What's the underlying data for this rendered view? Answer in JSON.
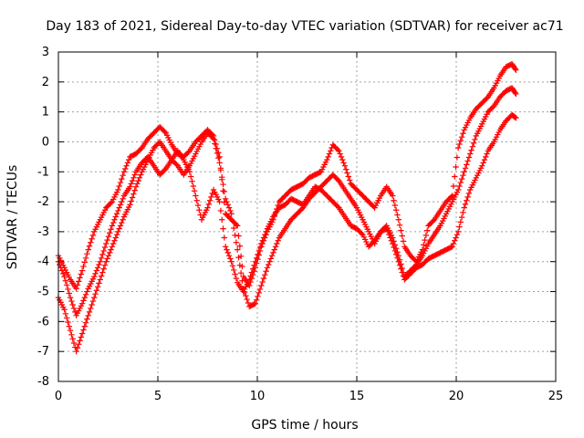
{
  "chart_data": {
    "type": "scatter",
    "title": "Day 183 of 2021, Sidereal Day-to-day VTEC variation (SDTVAR) for receiver ac71",
    "xlabel": "GPS time / hours",
    "ylabel": "SDTVAR / TECUs",
    "xlim": [
      0,
      25
    ],
    "ylim": [
      -8,
      3
    ],
    "xticks": [
      "0",
      "5",
      "10",
      "15",
      "20",
      "25"
    ],
    "yticks": [
      "-8",
      "-7",
      "-6",
      "-5",
      "-4",
      "-3",
      "-2",
      "-1",
      "0",
      "1",
      "2",
      "3"
    ],
    "grid": true,
    "marker": "plus",
    "color": "#ff0000",
    "series": [
      {
        "x": [
          0.0,
          0.3,
          0.6,
          0.9,
          1.2,
          1.5,
          1.8,
          2.1,
          2.4,
          2.7,
          3.0,
          3.3,
          3.6,
          3.9,
          4.2,
          4.5,
          4.8,
          5.1,
          5.4,
          5.7,
          6.0,
          6.3,
          6.6,
          6.9,
          7.2,
          7.5,
          7.8,
          8.1,
          8.4,
          8.7,
          9.0,
          9.3,
          9.6,
          9.9,
          10.2,
          10.5,
          10.8,
          11.1,
          11.4,
          11.7,
          12.0,
          12.3,
          12.6,
          12.9,
          13.2,
          13.5,
          13.8,
          14.1,
          14.4,
          14.7,
          15.0,
          15.3,
          15.6,
          15.9,
          16.2,
          16.5,
          16.8,
          17.1,
          17.4,
          17.7,
          18.0,
          18.3,
          18.6,
          18.9,
          19.2,
          19.5,
          19.8,
          20.1,
          20.4,
          20.7,
          21.0,
          21.3,
          21.6,
          21.9,
          22.2,
          22.5,
          22.8,
          23.0
        ],
        "y": [
          -3.8,
          -4.2,
          -4.6,
          -4.9,
          -4.3,
          -3.6,
          -3.0,
          -2.6,
          -2.2,
          -2.0,
          -1.6,
          -1.0,
          -0.5,
          -0.4,
          -0.2,
          0.1,
          0.3,
          0.5,
          0.3,
          -0.1,
          -0.4,
          -0.5,
          -0.3,
          0.0,
          0.2,
          0.4,
          0.2,
          -0.5,
          -2.4,
          -2.6,
          -2.8,
          -4.5,
          -4.8,
          -4.2,
          -3.5,
          -3.0,
          -2.6,
          -2.0,
          -1.8,
          -1.6,
          -1.5,
          -1.4,
          -1.2,
          -1.1,
          -1.0,
          -0.6,
          -0.1,
          -0.3,
          -0.8,
          -1.4,
          -1.6,
          -1.8,
          -2.0,
          -2.2,
          -1.8,
          -1.5,
          -1.8,
          -2.6,
          -3.5,
          -3.8,
          -4.0,
          -3.6,
          -2.8,
          -2.6,
          -2.3,
          -2.0,
          -1.8,
          -0.2,
          0.4,
          0.8,
          1.1,
          1.3,
          1.5,
          1.8,
          2.2,
          2.5,
          2.6,
          2.4
        ]
      },
      {
        "x": [
          0.0,
          0.3,
          0.6,
          0.9,
          1.2,
          1.5,
          1.8,
          2.1,
          2.4,
          2.7,
          3.0,
          3.3,
          3.6,
          3.9,
          4.2,
          4.5,
          4.8,
          5.1,
          5.4,
          5.7,
          6.0,
          6.3,
          6.6,
          6.9,
          7.2,
          7.5,
          7.8,
          8.1,
          8.4,
          8.7,
          9.0,
          9.3,
          9.6,
          9.9,
          10.2,
          10.5,
          10.8,
          11.1,
          11.4,
          11.7,
          12.0,
          12.3,
          12.6,
          12.9,
          13.2,
          13.5,
          13.8,
          14.1,
          14.4,
          14.7,
          15.0,
          15.3,
          15.6,
          15.9,
          16.2,
          16.5,
          16.8,
          17.1,
          17.4,
          17.7,
          18.0,
          18.3,
          18.6,
          18.9,
          19.2,
          19.5,
          19.8,
          20.1,
          20.4,
          20.7,
          21.0,
          21.3,
          21.6,
          21.9,
          22.2,
          22.5,
          22.8,
          23.0
        ],
        "y": [
          -5.2,
          -5.6,
          -6.3,
          -7.0,
          -6.4,
          -5.8,
          -5.2,
          -4.6,
          -4.0,
          -3.5,
          -3.0,
          -2.5,
          -2.1,
          -1.5,
          -1.0,
          -0.6,
          -0.2,
          0.0,
          -0.3,
          -0.6,
          -0.8,
          -1.1,
          -0.8,
          -0.4,
          0.0,
          0.3,
          0.1,
          -0.7,
          -1.9,
          -2.4,
          -3.6,
          -4.9,
          -5.5,
          -5.4,
          -4.8,
          -4.2,
          -3.7,
          -3.2,
          -2.9,
          -2.6,
          -2.4,
          -2.2,
          -1.9,
          -1.7,
          -1.5,
          -1.3,
          -1.1,
          -1.3,
          -1.6,
          -1.9,
          -2.2,
          -2.6,
          -3.0,
          -3.4,
          -3.0,
          -2.8,
          -3.2,
          -3.8,
          -4.5,
          -4.3,
          -4.1,
          -3.8,
          -3.4,
          -3.1,
          -2.8,
          -2.4,
          -2.0,
          -1.6,
          -1.0,
          -0.4,
          0.2,
          0.6,
          1.0,
          1.2,
          1.5,
          1.7,
          1.8,
          1.6
        ]
      },
      {
        "x": [
          0.0,
          0.3,
          0.6,
          0.9,
          1.2,
          1.5,
          1.8,
          2.1,
          2.4,
          2.7,
          3.0,
          3.3,
          3.6,
          3.9,
          4.2,
          4.5,
          4.8,
          5.1,
          5.4,
          5.7,
          6.0,
          6.3,
          6.6,
          6.9,
          7.2,
          7.5,
          7.8,
          8.1,
          8.4,
          8.7,
          9.0,
          9.3,
          9.6,
          9.9,
          10.2,
          10.5,
          10.8,
          11.1,
          11.4,
          11.7,
          12.0,
          12.3,
          12.6,
          12.9,
          13.2,
          13.5,
          13.8,
          14.1,
          14.4,
          14.7,
          15.0,
          15.3,
          15.6,
          15.9,
          16.2,
          16.5,
          16.8,
          17.1,
          17.4,
          17.7,
          18.0,
          18.3,
          18.6,
          18.9,
          19.2,
          19.5,
          19.8,
          20.1,
          20.4,
          20.7,
          21.0,
          21.3,
          21.6,
          21.9,
          22.2,
          22.5,
          22.8,
          23.0
        ],
        "y": [
          -4.0,
          -4.5,
          -5.2,
          -5.8,
          -5.4,
          -4.9,
          -4.5,
          -4.0,
          -3.4,
          -2.8,
          -2.3,
          -1.8,
          -1.5,
          -1.0,
          -0.7,
          -0.5,
          -0.8,
          -1.1,
          -0.9,
          -0.6,
          -0.3,
          -0.6,
          -1.0,
          -1.8,
          -2.6,
          -2.2,
          -1.6,
          -2.0,
          -3.5,
          -4.0,
          -4.7,
          -5.0,
          -4.6,
          -4.0,
          -3.4,
          -2.9,
          -2.5,
          -2.2,
          -2.1,
          -1.9,
          -2.0,
          -2.1,
          -1.8,
          -1.5,
          -1.6,
          -1.8,
          -2.0,
          -2.2,
          -2.5,
          -2.8,
          -2.9,
          -3.1,
          -3.5,
          -3.3,
          -3.0,
          -2.9,
          -3.4,
          -4.0,
          -4.6,
          -4.4,
          -4.2,
          -4.1,
          -3.9,
          -3.8,
          -3.7,
          -3.6,
          -3.5,
          -3.0,
          -2.2,
          -1.6,
          -1.2,
          -0.8,
          -0.3,
          0.0,
          0.4,
          0.7,
          0.9,
          0.8
        ]
      }
    ]
  }
}
